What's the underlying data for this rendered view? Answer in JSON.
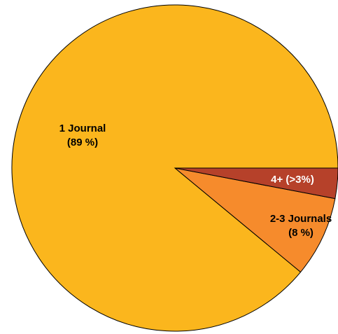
{
  "chart_data": {
    "type": "pie",
    "title": "",
    "start_angle_deg": 0,
    "direction": "counterclockwise",
    "slices": [
      {
        "label": "1 Journal",
        "value_label": "(89 %)",
        "value": 89,
        "color": "#FBB61D",
        "text_color": "#000000"
      },
      {
        "label": "2-3 Journals",
        "value_label": "(8 %)",
        "value": 8,
        "color": "#F68B2C",
        "text_color": "#000000"
      },
      {
        "label": "4+ (>3%)",
        "value_label": "",
        "value": 3,
        "color": "#B6412A",
        "text_color": "#ffffff"
      }
    ],
    "legend": "none"
  }
}
